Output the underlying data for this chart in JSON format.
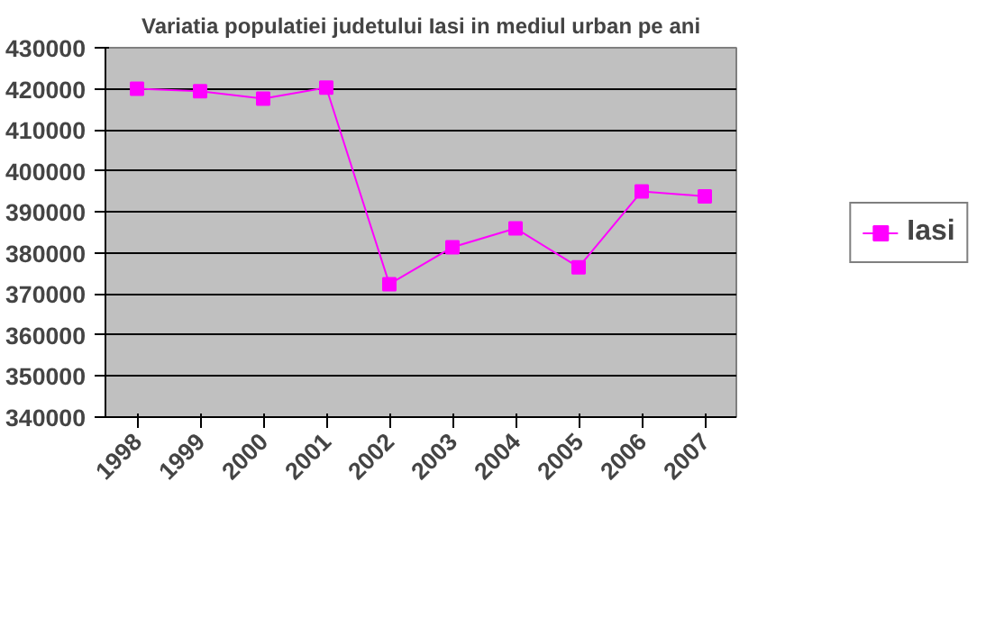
{
  "chart_data": {
    "type": "line",
    "title": "Variatia populatiei judetului Iasi in mediul urban pe ani",
    "categories": [
      "1998",
      "1999",
      "2000",
      "2001",
      "2002",
      "2003",
      "2004",
      "2005",
      "2006",
      "2007"
    ],
    "series": [
      {
        "name": "Iasi",
        "color": "#ff00ff",
        "values": [
          420000,
          419400,
          417600,
          420300,
          372400,
          381400,
          386000,
          376500,
          395000,
          393800
        ]
      }
    ],
    "ylim": [
      340000,
      430000
    ],
    "yticks": [
      340000,
      350000,
      360000,
      370000,
      380000,
      390000,
      400000,
      410000,
      420000,
      430000
    ],
    "grid": "y",
    "legend": "right",
    "marker": "square",
    "line_style": "solid"
  }
}
